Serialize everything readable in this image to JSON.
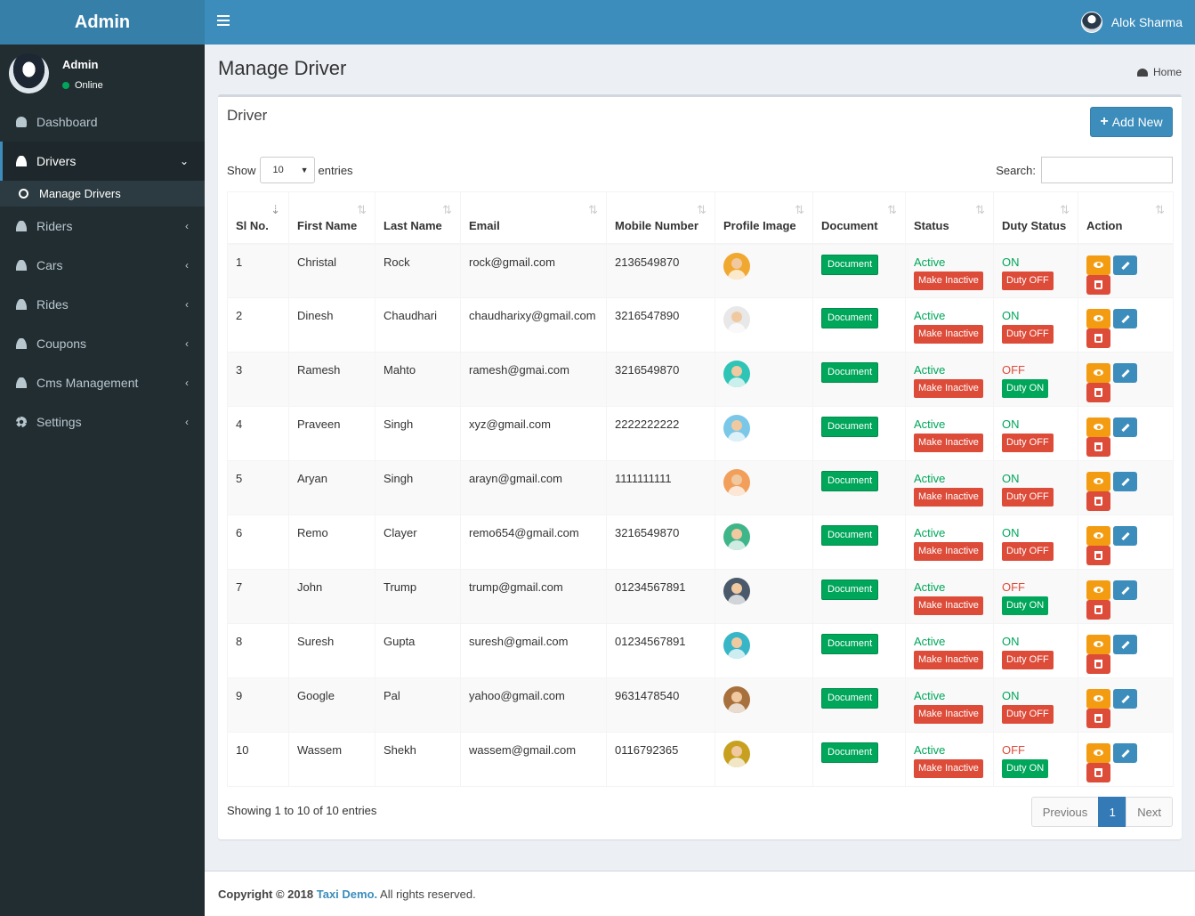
{
  "app": {
    "logo": "Admin"
  },
  "topbar": {
    "user_name": "Alok Sharma"
  },
  "sidebar": {
    "user": {
      "name": "Admin",
      "status": "Online"
    },
    "items": [
      {
        "label": "Dashboard"
      },
      {
        "label": "Drivers"
      },
      {
        "label": "Riders"
      },
      {
        "label": "Cars"
      },
      {
        "label": "Rides"
      },
      {
        "label": "Coupons"
      },
      {
        "label": "Cms Management"
      },
      {
        "label": "Settings"
      }
    ],
    "sub_item": "Manage Drivers"
  },
  "page": {
    "title": "Manage Driver",
    "breadcrumb": "Home"
  },
  "box": {
    "title": "Driver",
    "add_button": "Add New"
  },
  "table_controls": {
    "show_label": "Show",
    "entries_value": "10",
    "entries_label": "entries",
    "search_label": "Search:",
    "search_value": ""
  },
  "table": {
    "columns": [
      "Sl No.",
      "First Name",
      "Last Name",
      "Email",
      "Mobile Number",
      "Profile Image",
      "Document",
      "Status",
      "Duty Status",
      "Action"
    ],
    "document_label": "Document",
    "make_inactive_label": "Make Inactive",
    "rows": [
      {
        "sl": "1",
        "first": "Christal",
        "last": "Rock",
        "email": "rock@gmail.com",
        "mobile": "2136549870",
        "status": "Active",
        "duty": "ON",
        "duty_btn": "Duty OFF",
        "avatar_color": "#f0a830"
      },
      {
        "sl": "2",
        "first": "Dinesh",
        "last": "Chaudhari",
        "email": "chaudharixy@gmail.com",
        "mobile": "3216547890",
        "status": "Active",
        "duty": "ON",
        "duty_btn": "Duty OFF",
        "avatar_color": "#e8e8e8"
      },
      {
        "sl": "3",
        "first": "Ramesh",
        "last": "Mahto",
        "email": "ramesh@gmai.com",
        "mobile": "3216549870",
        "status": "Active",
        "duty": "OFF",
        "duty_btn": "Duty ON",
        "avatar_color": "#2ec4b6"
      },
      {
        "sl": "4",
        "first": "Praveen",
        "last": "Singh",
        "email": "xyz@gmail.com",
        "mobile": "2222222222",
        "status": "Active",
        "duty": "ON",
        "duty_btn": "Duty OFF",
        "avatar_color": "#7ac7e8"
      },
      {
        "sl": "5",
        "first": "Aryan",
        "last": "Singh",
        "email": "arayn@gmail.com",
        "mobile": "1111111111",
        "status": "Active",
        "duty": "ON",
        "duty_btn": "Duty OFF",
        "avatar_color": "#f29f5c"
      },
      {
        "sl": "6",
        "first": "Remo",
        "last": "Clayer",
        "email": "remo654@gmail.com",
        "mobile": "3216549870",
        "status": "Active",
        "duty": "ON",
        "duty_btn": "Duty OFF",
        "avatar_color": "#3fb58a"
      },
      {
        "sl": "7",
        "first": "John",
        "last": "Trump",
        "email": "trump@gmail.com",
        "mobile": "01234567891",
        "status": "Active",
        "duty": "OFF",
        "duty_btn": "Duty ON",
        "avatar_color": "#4a5a6a"
      },
      {
        "sl": "8",
        "first": "Suresh",
        "last": "Gupta",
        "email": "suresh@gmail.com",
        "mobile": "01234567891",
        "status": "Active",
        "duty": "ON",
        "duty_btn": "Duty OFF",
        "avatar_color": "#38b6c8"
      },
      {
        "sl": "9",
        "first": "Google",
        "last": "Pal",
        "email": "yahoo@gmail.com",
        "mobile": "9631478540",
        "status": "Active",
        "duty": "ON",
        "duty_btn": "Duty OFF",
        "avatar_color": "#a8703c"
      },
      {
        "sl": "10",
        "first": "Wassem",
        "last": "Shekh",
        "email": "wassem@gmail.com",
        "mobile": "0116792365",
        "status": "Active",
        "duty": "OFF",
        "duty_btn": "Duty ON",
        "avatar_color": "#c8a020"
      }
    ]
  },
  "pagination": {
    "info": "Showing 1 to 10 of 10 entries",
    "previous": "Previous",
    "current": "1",
    "next": "Next"
  },
  "footer": {
    "copyright": "Copyright © 2018",
    "brand": "Taxi Demo.",
    "rights": "All rights reserved."
  },
  "colors": {
    "primary": "#3c8dbc",
    "success": "#00a65a",
    "danger": "#dd4b39",
    "warning": "#f39c12",
    "sidebar": "#222d32"
  }
}
